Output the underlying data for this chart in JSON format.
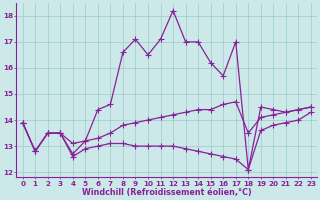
{
  "bg_color": "#cce8e8",
  "grid_color": "#99cccc",
  "line_color": "#882299",
  "marker": "+",
  "markersize": 4,
  "linewidth": 0.9,
  "xlabel": "Windchill (Refroidissement éolien,°C)",
  "xlabel_fontsize": 5.8,
  "tick_fontsize": 5.2,
  "ylim": [
    11.8,
    18.5
  ],
  "xlim": [
    -0.5,
    23.5
  ],
  "yticks": [
    12,
    13,
    14,
    15,
    16,
    17,
    18
  ],
  "xticks": [
    0,
    1,
    2,
    3,
    4,
    5,
    6,
    7,
    8,
    9,
    10,
    11,
    12,
    13,
    14,
    15,
    16,
    17,
    18,
    19,
    20,
    21,
    22,
    23
  ],
  "series": [
    [
      13.9,
      12.8,
      13.5,
      13.5,
      12.7,
      13.2,
      14.4,
      14.6,
      16.6,
      17.1,
      16.5,
      17.1,
      18.2,
      17.0,
      17.0,
      16.2,
      15.7,
      17.0,
      12.1,
      14.5,
      14.4,
      14.3,
      14.4,
      14.5
    ],
    [
      13.9,
      12.8,
      13.5,
      13.5,
      13.1,
      13.2,
      13.3,
      13.5,
      13.8,
      13.9,
      14.0,
      14.1,
      14.2,
      14.3,
      14.4,
      14.4,
      14.6,
      14.7,
      13.5,
      14.1,
      14.2,
      14.3,
      14.4,
      14.5
    ],
    [
      13.9,
      12.8,
      13.5,
      13.5,
      12.6,
      12.9,
      13.0,
      13.1,
      13.1,
      13.0,
      13.0,
      13.0,
      13.0,
      12.9,
      12.8,
      12.7,
      12.6,
      12.5,
      12.1,
      13.6,
      13.8,
      13.9,
      14.0,
      14.3
    ]
  ]
}
